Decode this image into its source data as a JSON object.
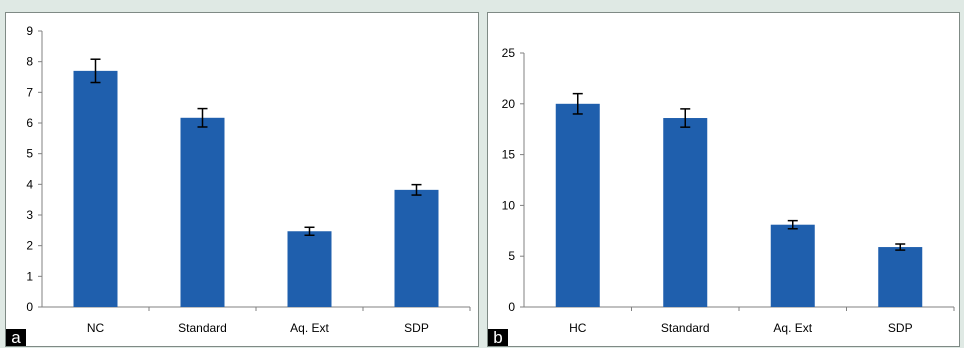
{
  "chart_data": [
    {
      "type": "bar",
      "panel_label": "a",
      "categories": [
        "NC",
        "Standard",
        "Aq. Ext",
        "SDP"
      ],
      "values": [
        7.7,
        6.17,
        2.47,
        3.82
      ],
      "error": [
        0.38,
        0.3,
        0.13,
        0.17
      ],
      "ylim": [
        0,
        9
      ],
      "yticks": [
        0,
        1,
        2,
        3,
        4,
        5,
        6,
        7,
        8,
        9
      ],
      "title": "",
      "xlabel": "",
      "ylabel": "",
      "bar_color": "#1f5fad",
      "grid": false,
      "legend": "none"
    },
    {
      "type": "bar",
      "panel_label": "b",
      "categories": [
        "HC",
        "Standard",
        "Aq. Ext",
        "SDP"
      ],
      "values": [
        20.0,
        18.6,
        8.1,
        5.9
      ],
      "error": [
        1.0,
        0.9,
        0.4,
        0.3
      ],
      "ylim": [
        0,
        25
      ],
      "yticks": [
        0,
        5,
        10,
        15,
        20,
        25
      ],
      "title": "",
      "xlabel": "",
      "ylabel": "",
      "bar_color": "#1f5fad",
      "grid": false,
      "legend": "none"
    }
  ]
}
